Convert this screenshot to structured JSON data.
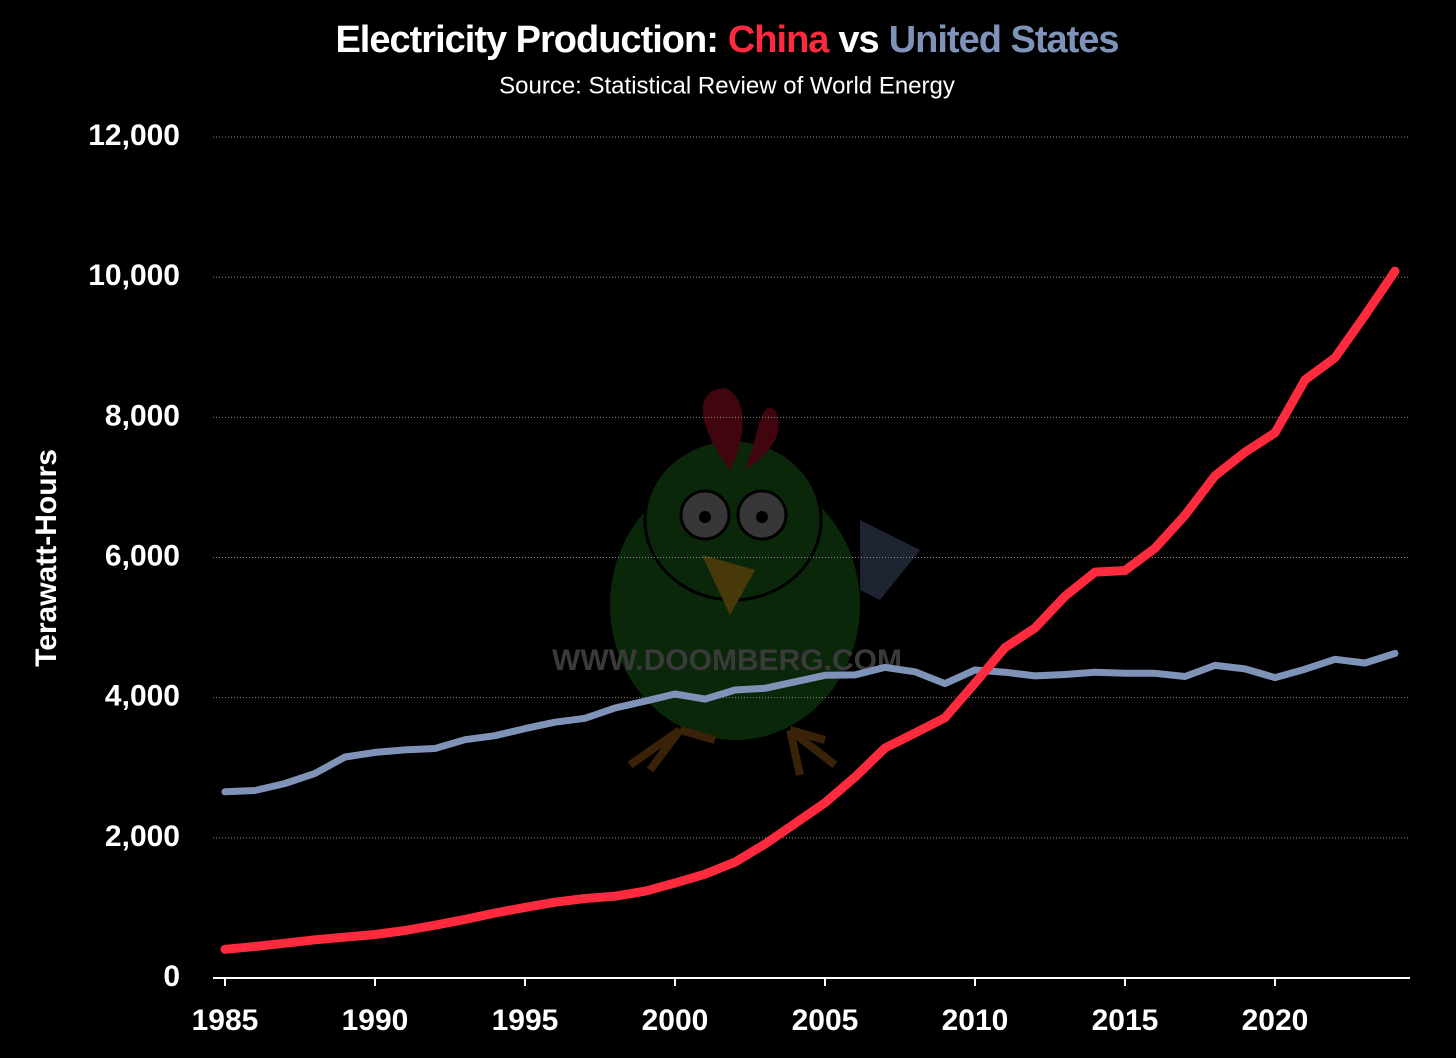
{
  "chart_data": {
    "type": "line",
    "title_parts": [
      "Electricity Production:",
      "China",
      "vs",
      "United States"
    ],
    "subtitle": "Source: Statistical Review of World Energy",
    "ylabel": "Terawatt-Hours",
    "watermark": "WWW.DOOMBERG.COM",
    "x": [
      1985,
      1986,
      1987,
      1988,
      1989,
      1990,
      1991,
      1992,
      1993,
      1994,
      1995,
      1996,
      1997,
      1998,
      1999,
      2000,
      2001,
      2002,
      2003,
      2004,
      2005,
      2006,
      2007,
      2008,
      2009,
      2010,
      2011,
      2012,
      2013,
      2014,
      2015,
      2016,
      2017,
      2018,
      2019,
      2020,
      2021,
      2022,
      2023,
      2024
    ],
    "series": [
      {
        "name": "China",
        "color": "#ff2a3d",
        "values": [
          410,
          449,
          497,
          545,
          584,
          621,
          678,
          754,
          836,
          928,
          1007,
          1081,
          1135,
          1167,
          1239,
          1356,
          1481,
          1654,
          1911,
          2204,
          2500,
          2866,
          3282,
          3496,
          3714,
          4208,
          4715,
          4994,
          5448,
          5791,
          5815,
          6133,
          6604,
          7166,
          7503,
          7779,
          8534,
          8849,
          9456,
          10087
        ]
      },
      {
        "name": "United States",
        "color": "#7f93b8",
        "values": [
          2657,
          2676,
          2775,
          2920,
          3154,
          3219,
          3255,
          3275,
          3400,
          3458,
          3558,
          3650,
          3706,
          3853,
          3950,
          4053,
          3979,
          4109,
          4133,
          4226,
          4319,
          4325,
          4432,
          4369,
          4201,
          4395,
          4364,
          4310,
          4330,
          4363,
          4348,
          4348,
          4302,
          4461,
          4411,
          4287,
          4406,
          4547,
          4494,
          4631
        ]
      }
    ],
    "xlim": [
      1984.6,
      2024.5
    ],
    "xticks": [
      1985,
      1990,
      1995,
      2000,
      2005,
      2010,
      2015,
      2020
    ],
    "ylim": [
      0,
      12000
    ],
    "yticks": [
      0,
      {
        "value": 2000,
        "label": "2,000"
      },
      {
        "value": 4000,
        "label": "4,000"
      },
      {
        "value": 6000,
        "label": "6,000"
      },
      {
        "value": 8000,
        "label": "8,000"
      },
      {
        "value": 10000,
        "label": "10,000"
      },
      {
        "value": 12000,
        "label": "12,000"
      }
    ],
    "grid": true
  }
}
